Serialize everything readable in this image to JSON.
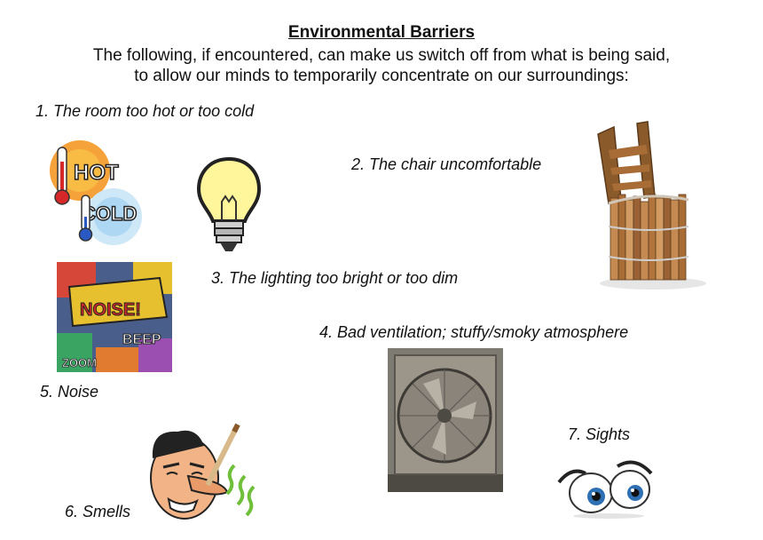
{
  "title": "Environmental Barriers",
  "intro": {
    "line1": "The following, if encountered, can make us switch off from what is being said,",
    "line2": "to allow our minds to temporarily concentrate on our surroundings:"
  },
  "items": [
    "1. The room too hot or too cold",
    "2. The chair uncomfortable",
    "3. The lighting too bright or too dim",
    "4. Bad ventilation; stuffy/smoky atmosphere",
    "5. Noise",
    "6. Smells",
    "7. Sights"
  ],
  "graphics": {
    "hot_word": "HOT",
    "cold_word": "COLD",
    "noise_word": "NOISE!",
    "beep_word": "BEEP",
    "zoom_word": "ZOOM"
  },
  "colors": {
    "hot": "#f08a2c",
    "cold": "#5aa9e6",
    "bulb": "#fff59a",
    "wood": "#9a6234"
  }
}
